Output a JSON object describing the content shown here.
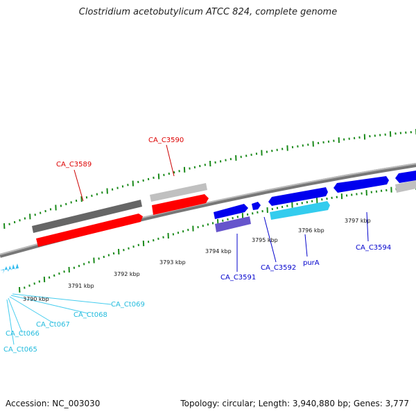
{
  "title": "Clostridium acetobutylicum ATCC 824, complete genome",
  "footer": {
    "accession": "Accession: NC_003030",
    "summary": "Topology: circular; Length: 3,940,880 bp; Genes: 3,777"
  },
  "colors": {
    "forward_gene_dark": "#666666",
    "forward_gene_light": "#bbbbbb",
    "red_gene": "#ff0000",
    "blue_gene": "#0000ee",
    "cyan_gene": "#33ccee",
    "purple_gene": "#6655cc",
    "tick_green": "#1a8a1a",
    "backbone": "#888888",
    "label_red": "#dd0000",
    "label_blue": "#0000cc",
    "label_cyan": "#22bbdd"
  },
  "scale_labels": [
    "3790 kbp",
    "3791 kbp",
    "3792 kbp",
    "3793 kbp",
    "3794 kbp",
    "3795 kbp",
    "3796 kbp",
    "3797 kbp"
  ],
  "gene_labels": [
    {
      "text": "CA_C3590",
      "color": "red"
    },
    {
      "text": "CA_C3589",
      "color": "red"
    },
    {
      "text": "CA_C3591",
      "color": "blue"
    },
    {
      "text": "CA_C3592",
      "color": "blue"
    },
    {
      "text": "purA",
      "color": "blue"
    },
    {
      "text": "CA_C3594",
      "color": "blue"
    },
    {
      "text": "CA_Ct069",
      "color": "cyan"
    },
    {
      "text": "CA_Ct068",
      "color": "cyan"
    },
    {
      "text": "CA_Ct067",
      "color": "cyan"
    },
    {
      "text": "CA_Ct066",
      "color": "cyan"
    },
    {
      "text": "CA_Ct065",
      "color": "cyan"
    }
  ]
}
